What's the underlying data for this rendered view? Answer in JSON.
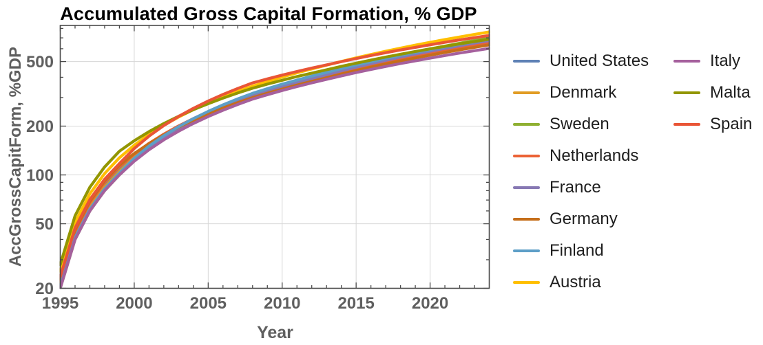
{
  "title": "Accumulated Gross Capital Formation, % GDP",
  "chart_data": {
    "type": "line",
    "title": "Accumulated Gross Capital Formation, % GDP",
    "xlabel": "Year",
    "ylabel": "AccGrossCapitForm, %GDP",
    "x_scale": "linear",
    "y_scale": "log",
    "xlim": [
      1995,
      2024
    ],
    "ylim": [
      20,
      835
    ],
    "grid": true,
    "legend_position": "right-outside-two-columns",
    "legend_column_split": 8,
    "x_major_ticks": [
      1995,
      2000,
      2005,
      2010,
      2015,
      2020
    ],
    "x_minor_ticks": [
      1996,
      1997,
      1998,
      1999,
      2001,
      2002,
      2003,
      2004,
      2006,
      2007,
      2008,
      2009,
      2011,
      2012,
      2013,
      2014,
      2016,
      2017,
      2018,
      2019,
      2021,
      2022,
      2023
    ],
    "y_major_ticks": [
      20,
      50,
      100,
      200,
      500
    ],
    "y_minor_ticks": [
      30,
      40,
      60,
      70,
      80,
      90,
      300,
      400,
      600,
      700,
      800
    ],
    "colors": {
      "frame": "#4a4a4a",
      "grid": "#d6d6d6",
      "tick_label": "#5f5f5f",
      "title": "#000000",
      "legend_text": "#1e1e1e"
    },
    "x": [
      1995,
      1996,
      1997,
      1998,
      1999,
      2000,
      2001,
      2002,
      2003,
      2004,
      2005,
      2006,
      2007,
      2008,
      2009,
      2010,
      2011,
      2012,
      2013,
      2014,
      2015,
      2016,
      2017,
      2018,
      2019,
      2020,
      2021,
      2022,
      2023,
      2024
    ],
    "series": [
      {
        "name": "United States",
        "color": "#5e81b5",
        "values": [
          22,
          44,
          66,
          88,
          110,
          132.5,
          155,
          177.5,
          200,
          222.5,
          245,
          267.5,
          290,
          312.5,
          332.5,
          352.5,
          372.5,
          392.5,
          412.5,
          434,
          455.5,
          477,
          498.5,
          520,
          541.5,
          563,
          584.5,
          606,
          627.5,
          649
        ]
      },
      {
        "name": "Denmark",
        "color": "#e19c24",
        "values": [
          21,
          42,
          63,
          84,
          105,
          128,
          151,
          174,
          197,
          220,
          243,
          266,
          289,
          312,
          332.5,
          353,
          373.5,
          394,
          414.5,
          435,
          458,
          481,
          504,
          527,
          550,
          573,
          596,
          619,
          642,
          665
        ]
      },
      {
        "name": "Sweden",
        "color": "#8fb032",
        "values": [
          20,
          40,
          60,
          80,
          100,
          123,
          146,
          169,
          192,
          215,
          238,
          261,
          284,
          307,
          329.5,
          352,
          374.5,
          397,
          419.5,
          445,
          470.5,
          496,
          521.5,
          547,
          572.5,
          598,
          623.5,
          649,
          674.5,
          700
        ]
      },
      {
        "name": "Netherlands",
        "color": "#eb6235",
        "values": [
          22.5,
          45,
          67.5,
          90,
          112.5,
          134.5,
          156.5,
          178.5,
          200.5,
          222.5,
          244.5,
          266.5,
          288.5,
          310.5,
          330.5,
          350.5,
          370.5,
          390.5,
          410.5,
          432.5,
          454.5,
          476.5,
          498.5,
          520.5,
          542.5,
          564.5,
          586.5,
          608.5,
          630.5,
          652.5
        ]
      },
      {
        "name": "France",
        "color": "#8778b3",
        "values": [
          20.5,
          41,
          61.5,
          82,
          102.5,
          125,
          147.5,
          170,
          192.5,
          215,
          237.5,
          260,
          282.5,
          305,
          327,
          349,
          371,
          393,
          415,
          438.5,
          462,
          485.5,
          509,
          532.5,
          556,
          579.5,
          603,
          626.5,
          650,
          673.5
        ]
      },
      {
        "name": "Germany",
        "color": "#c56e1a",
        "values": [
          23,
          46,
          69,
          92,
          115,
          135.5,
          156,
          176.5,
          197,
          217.5,
          238,
          258.5,
          279,
          299.5,
          319,
          338.5,
          358,
          377.5,
          397,
          418.5,
          440,
          461.5,
          483,
          504.5,
          526,
          547.5,
          569,
          590.5,
          612,
          633.5
        ]
      },
      {
        "name": "Finland",
        "color": "#5d9ec7",
        "values": [
          20.5,
          41,
          61.5,
          82,
          102.5,
          126.5,
          150.5,
          174.5,
          198.5,
          222.5,
          246.5,
          270.5,
          294.5,
          318.5,
          340.5,
          362.5,
          384.5,
          406.5,
          428.5,
          452,
          475.5,
          499,
          522.5,
          546,
          569.5,
          593,
          616.5,
          640,
          663.5,
          687
        ]
      },
      {
        "name": "Austria",
        "color": "#ffbf00",
        "values": [
          25.5,
          51,
          76.5,
          102,
          127.5,
          152.5,
          177.5,
          202.5,
          227.5,
          252.5,
          277.5,
          302.5,
          327.5,
          352.5,
          377,
          401.5,
          426,
          450.5,
          475,
          501,
          527,
          553,
          579,
          605,
          631,
          657,
          683,
          709,
          735,
          761
        ]
      },
      {
        "name": "Italy",
        "color": "#a5609d",
        "values": [
          20,
          40,
          60,
          80,
          100,
          121.5,
          143,
          164.5,
          186,
          207.5,
          229,
          250.5,
          272,
          293.5,
          312.5,
          331.5,
          350.5,
          369.5,
          388.5,
          408,
          427.5,
          447,
          466.5,
          486,
          505.5,
          525,
          544.5,
          564,
          583.5,
          603
        ]
      },
      {
        "name": "Malta",
        "color": "#929600",
        "values": [
          28,
          56,
          84,
          112,
          140,
          162.5,
          185,
          207.5,
          230,
          252.5,
          275,
          297.5,
          320,
          342.5,
          363,
          383.5,
          404,
          424.5,
          445,
          467,
          489,
          511,
          533,
          555,
          577,
          599,
          621,
          643,
          665,
          687
        ]
      },
      {
        "name": "Spain",
        "color": "#e95536",
        "values": [
          23.5,
          47,
          70.5,
          94,
          117.5,
          145.5,
          173.5,
          201.5,
          229.5,
          257.5,
          285.5,
          313.5,
          341.5,
          369.5,
          391,
          412.5,
          434,
          455.5,
          477,
          499.5,
          522,
          544.5,
          567,
          589.5,
          612,
          634.5,
          657,
          679.5,
          702,
          724.5
        ]
      }
    ]
  }
}
